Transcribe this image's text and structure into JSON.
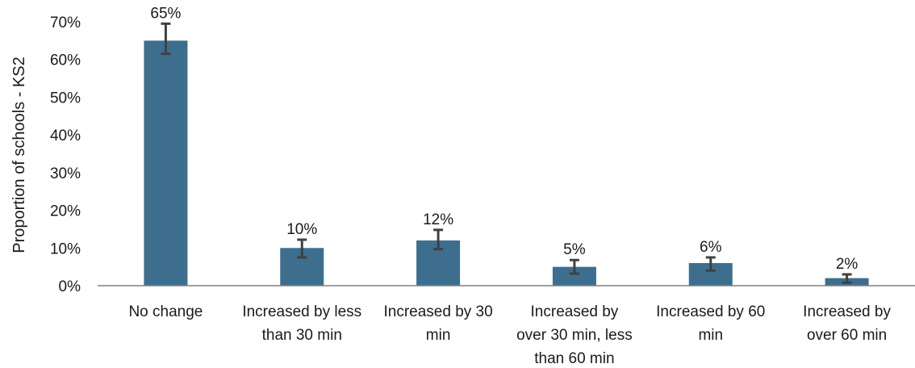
{
  "chart_data": {
    "type": "bar",
    "ylabel": "Proportion of schools - KS2",
    "ylim": [
      0,
      70
    ],
    "yticks": [
      0,
      10,
      20,
      30,
      40,
      50,
      60,
      70
    ],
    "ytick_labels": [
      "0%",
      "10%",
      "20%",
      "30%",
      "40%",
      "50%",
      "60%",
      "70%"
    ],
    "categories": [
      [
        "No change"
      ],
      [
        "Increased by less",
        "than 30 min"
      ],
      [
        "Increased by 30",
        "min"
      ],
      [
        "Increased by",
        "over 30 min, less",
        "than 60 min"
      ],
      [
        "Increased by 60",
        "min"
      ],
      [
        "Increased by",
        "over 60 min"
      ]
    ],
    "values": [
      65,
      10,
      12,
      5,
      6,
      2
    ],
    "data_labels": [
      "65%",
      "10%",
      "12%",
      "5%",
      "6%",
      "2%"
    ],
    "error_bars": [
      [
        61.5,
        69.5
      ],
      [
        7.5,
        12.2
      ],
      [
        9.7,
        14.8
      ],
      [
        3.2,
        6.8
      ],
      [
        4.0,
        7.5
      ],
      [
        0.8,
        3.0
      ]
    ],
    "bar_color": "#3e6e8e",
    "error_bar_color": "#404040",
    "grid": false,
    "legend": "none"
  }
}
